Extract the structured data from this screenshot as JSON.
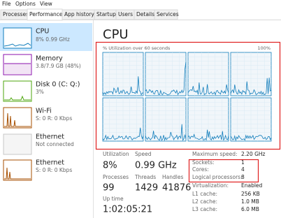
{
  "menu": [
    "File",
    "Options",
    "View"
  ],
  "tabs": [
    "Processes",
    "Performance",
    "App history",
    "Startup",
    "Users",
    "Details",
    "Services"
  ],
  "sidebar": [
    {
      "title": "CPU",
      "detail": "8% 0.99 GHz"
    },
    {
      "title": "Memory",
      "detail": "3.8/7.9 GB (48%)"
    },
    {
      "title": "Disk 0 (C: Q:)",
      "detail": "3%"
    },
    {
      "title": "Wi-Fi",
      "detail": "S: 0 R: 0 Kbps"
    },
    {
      "title": "Ethernet",
      "detail": "Not connected"
    },
    {
      "title": "Ethernet",
      "detail": "S: 0 R: 0 Kbps"
    }
  ],
  "main": {
    "title": "CPU",
    "graph_label": "% Utilization over 60 seconds",
    "graph_max": "100%",
    "stats": [
      {
        "label": "Utilization",
        "value": "8%"
      },
      {
        "label": "Speed",
        "value": "0.99 GHz"
      },
      {
        "label": "Processes",
        "value": "99"
      },
      {
        "label": "Threads",
        "value": "1429"
      },
      {
        "label": "Handles",
        "value": "41876"
      },
      {
        "label": "Up time",
        "value": "1:02:05:21"
      }
    ],
    "specs": [
      {
        "label": "Maximum speed:",
        "value": "2.20 GHz"
      },
      {
        "label": "Sockets:",
        "value": "1"
      },
      {
        "label": "Cores:",
        "value": "4"
      },
      {
        "label": "Logical processors:",
        "value": "8"
      },
      {
        "label": "Virtualization:",
        "value": "Enabled"
      },
      {
        "label": "L1 cache:",
        "value": "256 KB"
      },
      {
        "label": "L2 cache:",
        "value": "1.0 MB"
      },
      {
        "label": "L3 cache:",
        "value": "6.0 MB"
      }
    ]
  }
}
